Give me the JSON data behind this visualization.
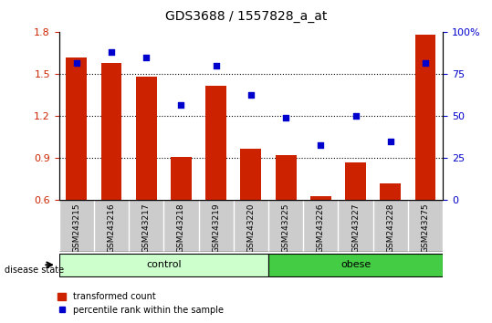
{
  "title": "GDS3688 / 1557828_a_at",
  "categories": [
    "GSM243215",
    "GSM243216",
    "GSM243217",
    "GSM243218",
    "GSM243219",
    "GSM243220",
    "GSM243225",
    "GSM243226",
    "GSM243227",
    "GSM243228",
    "GSM243275"
  ],
  "bar_values": [
    1.62,
    1.58,
    1.48,
    0.91,
    1.42,
    0.97,
    0.92,
    0.63,
    0.87,
    0.72,
    1.78
  ],
  "scatter_values": [
    82,
    88,
    85,
    57,
    80,
    63,
    49,
    33,
    50,
    35,
    82
  ],
  "bar_color": "#cc2200",
  "scatter_color": "#0000cc",
  "ylim_left": [
    0.6,
    1.8
  ],
  "ylim_right": [
    0,
    100
  ],
  "yticks_left": [
    0.6,
    0.9,
    1.2,
    1.5,
    1.8
  ],
  "yticks_right": [
    0,
    25,
    50,
    75,
    100
  ],
  "ytick_labels_right": [
    "0",
    "25",
    "50",
    "75",
    "100%"
  ],
  "control_samples": [
    "GSM243215",
    "GSM243216",
    "GSM243217",
    "GSM243218",
    "GSM243219",
    "GSM243220"
  ],
  "obese_samples": [
    "GSM243225",
    "GSM243226",
    "GSM243227",
    "GSM243228",
    "GSM243275"
  ],
  "control_label": "control",
  "obese_label": "obese",
  "disease_state_label": "disease state",
  "legend_bar_label": "transformed count",
  "legend_scatter_label": "percentile rank within the sample",
  "control_color": "#ccffcc",
  "obese_color": "#44cc44",
  "tick_area_color": "#cccccc",
  "bg_color": "#ffffff",
  "grid_color": "#000000",
  "figsize": [
    5.39,
    3.54
  ],
  "dpi": 100
}
